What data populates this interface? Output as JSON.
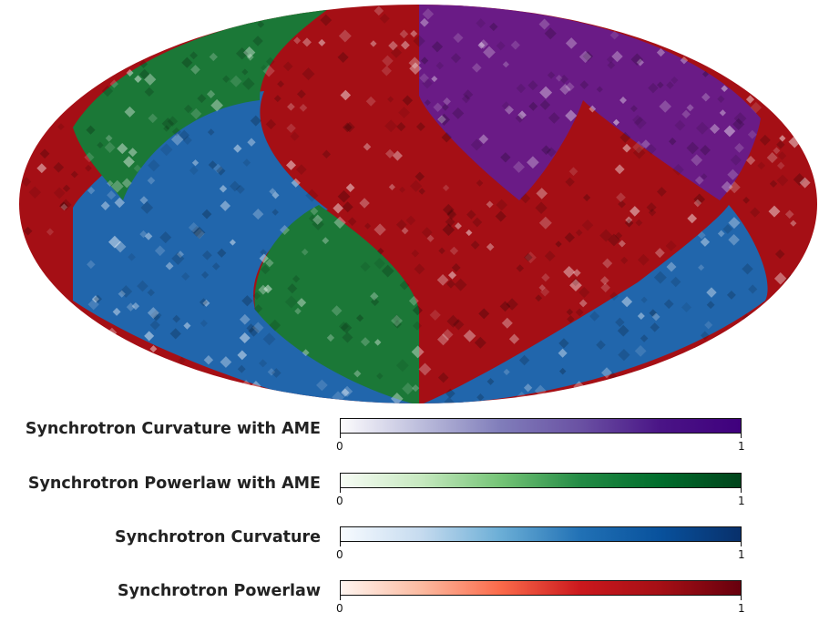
{
  "map": {
    "projection": "mollweide",
    "regions": [
      {
        "name": "Synchrotron Powerlaw",
        "colormap": "reds"
      },
      {
        "name": "Synchrotron Curvature",
        "colormap": "blues"
      },
      {
        "name": "Synchrotron Powerlaw with AME",
        "colormap": "greens"
      },
      {
        "name": "Synchrotron Curvature with AME",
        "colormap": "purples"
      }
    ]
  },
  "legend": [
    {
      "label": "Synchrotron Curvature with AME",
      "min": "0",
      "max": "1",
      "colors": [
        "#fcfbfd",
        "#bcbddc",
        "#807dba",
        "#6a51a3",
        "#4a1486"
      ],
      "end": "#3f007d"
    },
    {
      "label": "Synchrotron Powerlaw with AME",
      "min": "0",
      "max": "1",
      "colors": [
        "#f7fcf5",
        "#c7e9c0",
        "#74c476",
        "#238b45",
        "#006d2c"
      ],
      "end": "#00441b"
    },
    {
      "label": "Synchrotron Curvature",
      "min": "0",
      "max": "1",
      "colors": [
        "#f7fbff",
        "#c6dbef",
        "#6baed6",
        "#2171b5",
        "#08519c"
      ],
      "end": "#08306b"
    },
    {
      "label": "Synchrotron Powerlaw",
      "min": "0",
      "max": "1",
      "colors": [
        "#fff5f0",
        "#fcbba1",
        "#fb6a4a",
        "#cb181d",
        "#a50f15"
      ],
      "end": "#67000d"
    }
  ]
}
